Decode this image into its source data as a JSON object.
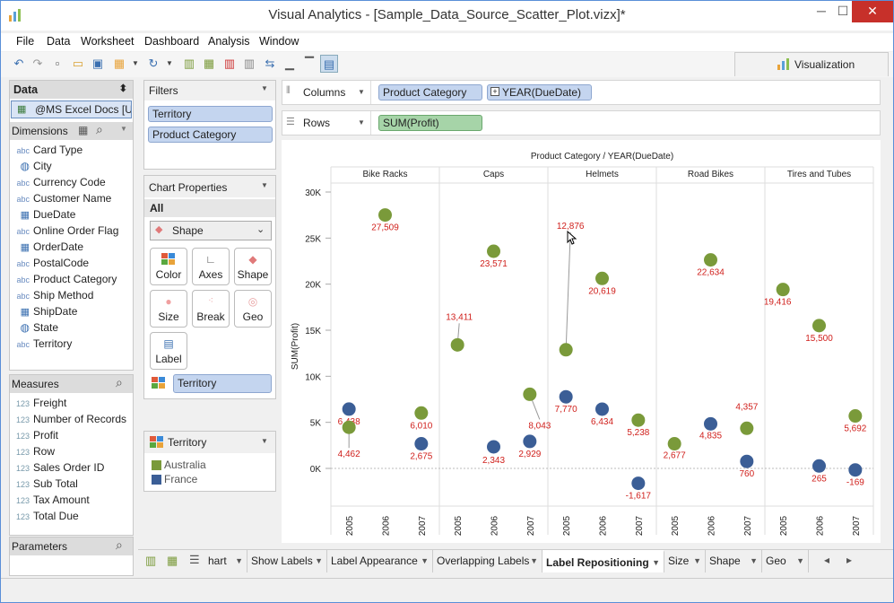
{
  "window": {
    "title": "Visual Analytics - [Sample_Data_Source_Scatter_Plot.vizx]*",
    "minimize": "─",
    "maximize": "☐",
    "close": "✕"
  },
  "menu": [
    "File",
    "Data",
    "Worksheet",
    "Dashboard",
    "Analysis",
    "Window"
  ],
  "toolbar": {
    "visualization_tab": "Visualization"
  },
  "data_panel": {
    "title": "Data",
    "source": "@MS Excel Docs [U...",
    "dimensions_title": "Dimensions",
    "dimensions": [
      {
        "name": "Card Type",
        "icon": "abc"
      },
      {
        "name": "City",
        "icon": "globe"
      },
      {
        "name": "Currency Code",
        "icon": "abc"
      },
      {
        "name": "Customer Name",
        "icon": "abc"
      },
      {
        "name": "DueDate",
        "icon": "date"
      },
      {
        "name": "Online Order Flag",
        "icon": "abc"
      },
      {
        "name": "OrderDate",
        "icon": "date"
      },
      {
        "name": "PostalCode",
        "icon": "abc"
      },
      {
        "name": "Product Category",
        "icon": "abc"
      },
      {
        "name": "Ship Method",
        "icon": "abc"
      },
      {
        "name": "ShipDate",
        "icon": "date"
      },
      {
        "name": "State",
        "icon": "globe"
      },
      {
        "name": "Territory",
        "icon": "abc"
      }
    ],
    "measures_title": "Measures",
    "measures": [
      {
        "name": "Freight",
        "icon": "123"
      },
      {
        "name": "Number of Records",
        "icon": "123"
      },
      {
        "name": "Profit",
        "icon": "123"
      },
      {
        "name": "Row",
        "icon": "123"
      },
      {
        "name": "Sales Order ID",
        "icon": "123"
      },
      {
        "name": "Sub Total",
        "icon": "123"
      },
      {
        "name": "Tax Amount",
        "icon": "123"
      },
      {
        "name": "Total Due",
        "icon": "123"
      }
    ],
    "parameters_title": "Parameters"
  },
  "filters": {
    "title": "Filters",
    "items": [
      "Territory",
      "Product Category"
    ]
  },
  "chart_properties": {
    "title": "Chart Properties",
    "all": "All",
    "mark_type": "Shape",
    "buttons": [
      "Color",
      "Axes",
      "Shape",
      "Size",
      "Break",
      "Geo",
      "Label"
    ],
    "color_field": "Territory"
  },
  "legend": {
    "title": "Territory",
    "items": [
      {
        "name": "Australia",
        "color": "#7a9a3a"
      },
      {
        "name": "France",
        "color": "#3b5e96"
      }
    ]
  },
  "shelves": {
    "columns_label": "Columns",
    "columns": [
      "Product Category",
      "YEAR(DueDate)"
    ],
    "rows_label": "Rows",
    "rows": [
      "SUM(Profit)"
    ]
  },
  "colors": {
    "australia": "#7a9a3a",
    "france": "#3b5e96",
    "label": "#d0201c"
  },
  "chart_data": {
    "type": "scatter",
    "title": "Product Category / YEAR(DueDate)",
    "ylabel": "SUM(Profit)",
    "yticks": [
      "30K",
      "25K",
      "20K",
      "15K",
      "10K",
      "5K",
      "0K"
    ],
    "ytick_values": [
      30000,
      25000,
      20000,
      15000,
      10000,
      5000,
      0
    ],
    "ylim": [
      -3000,
      31000
    ],
    "categories": [
      "Bike Racks",
      "Caps",
      "Helmets",
      "Road Bikes",
      "Tires and Tubes"
    ],
    "years": [
      "2005",
      "2006",
      "2007"
    ],
    "series": [
      {
        "name": "Australia",
        "values": [
          [
            4462,
            27509,
            6010
          ],
          [
            13411,
            23571,
            8043
          ],
          [
            12876,
            20619,
            5238
          ],
          [
            2677,
            22634,
            4357
          ],
          [
            19416,
            15500,
            5692
          ]
        ]
      },
      {
        "name": "France",
        "values": [
          [
            6438,
            null,
            2675
          ],
          [
            null,
            2343,
            2929
          ],
          [
            7770,
            6434,
            -1617
          ],
          [
            null,
            4835,
            760
          ],
          [
            null,
            265,
            -169
          ]
        ]
      }
    ],
    "point_labels": [
      {
        "text": "27,509",
        "series": "Australia",
        "cat": 0,
        "year": 1
      },
      {
        "text": "6,438",
        "series": "France",
        "cat": 0,
        "year": 0
      },
      {
        "text": "4,462",
        "series": "Australia",
        "cat": 0,
        "year": 0
      },
      {
        "text": "6,010",
        "series": "Australia",
        "cat": 0,
        "year": 2
      },
      {
        "text": "2,675",
        "series": "France",
        "cat": 0,
        "year": 2
      },
      {
        "text": "13,411",
        "series": "Australia",
        "cat": 1,
        "year": 0
      },
      {
        "text": "23,571",
        "series": "Australia",
        "cat": 1,
        "year": 1
      },
      {
        "text": "8,043",
        "series": "Australia",
        "cat": 1,
        "year": 2
      },
      {
        "text": "2,343",
        "series": "France",
        "cat": 1,
        "year": 1
      },
      {
        "text": "2,929",
        "series": "France",
        "cat": 1,
        "year": 2
      },
      {
        "text": "12,876",
        "series": "Australia",
        "cat": 2,
        "year": 0
      },
      {
        "text": "20,619",
        "series": "Australia",
        "cat": 2,
        "year": 1
      },
      {
        "text": "7,770",
        "series": "France",
        "cat": 2,
        "year": 0
      },
      {
        "text": "6,434",
        "series": "France",
        "cat": 2,
        "year": 1
      },
      {
        "text": "5,238",
        "series": "Australia",
        "cat": 2,
        "year": 2
      },
      {
        "text": "-1,617",
        "series": "France",
        "cat": 2,
        "year": 2
      },
      {
        "text": "22,634",
        "series": "Australia",
        "cat": 3,
        "year": 1
      },
      {
        "text": "2,677",
        "series": "Australia",
        "cat": 3,
        "year": 0
      },
      {
        "text": "4,835",
        "series": "France",
        "cat": 3,
        "year": 1
      },
      {
        "text": "4,357",
        "series": "Australia",
        "cat": 3,
        "year": 2
      },
      {
        "text": "760",
        "series": "France",
        "cat": 3,
        "year": 2
      },
      {
        "text": "19,416",
        "series": "Australia",
        "cat": 4,
        "year": 0
      },
      {
        "text": "15,500",
        "series": "Australia",
        "cat": 4,
        "year": 1
      },
      {
        "text": "5,692",
        "series": "Australia",
        "cat": 4,
        "year": 2
      },
      {
        "text": "265",
        "series": "France",
        "cat": 4,
        "year": 1
      },
      {
        "text": "-169",
        "series": "France",
        "cat": 4,
        "year": 2
      }
    ]
  },
  "sheet_tabs": [
    "hart",
    "Show Labels",
    "Label Appearance",
    "Overlapping Labels",
    "Label Repositioning",
    "Size",
    "Shape",
    "Geo"
  ],
  "active_tab": "Label Repositioning"
}
